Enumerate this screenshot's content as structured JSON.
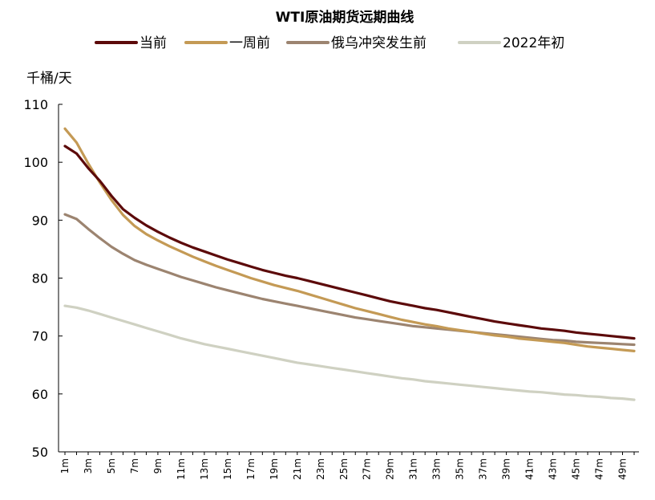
{
  "chart_data": {
    "type": "line",
    "title": "WTI原油期货远期曲线",
    "ylabel": "千桶/天",
    "xlabel": "",
    "ylim": [
      50,
      110
    ],
    "yticks": [
      50,
      60,
      70,
      80,
      90,
      100,
      110
    ],
    "x": [
      1,
      2,
      3,
      4,
      5,
      6,
      7,
      8,
      9,
      10,
      11,
      12,
      13,
      14,
      15,
      16,
      17,
      18,
      19,
      20,
      21,
      22,
      23,
      24,
      25,
      26,
      27,
      28,
      29,
      30,
      31,
      32,
      33,
      34,
      35,
      36,
      37,
      38,
      39,
      40,
      41,
      42,
      43,
      44,
      45,
      46,
      47,
      48,
      49,
      50
    ],
    "xtick_labels": [
      "1m",
      "3m",
      "5m",
      "7m",
      "9m",
      "11m",
      "13m",
      "15m",
      "17m",
      "19m",
      "21m",
      "23m",
      "25m",
      "27m",
      "29m",
      "31m",
      "33m",
      "35m",
      "37m",
      "39m",
      "41m",
      "43m",
      "45m",
      "47m",
      "49m"
    ],
    "xtick_positions": [
      1,
      3,
      5,
      7,
      9,
      11,
      13,
      15,
      17,
      19,
      21,
      23,
      25,
      27,
      29,
      31,
      33,
      35,
      37,
      39,
      41,
      43,
      45,
      47,
      49
    ],
    "legend_position": "top",
    "grid": false,
    "series": [
      {
        "name": "当前",
        "color": "#5c0a0a",
        "values": [
          102.8,
          101.5,
          99.0,
          96.8,
          94.2,
          91.9,
          90.4,
          89.1,
          88.0,
          87.0,
          86.1,
          85.3,
          84.6,
          83.9,
          83.2,
          82.6,
          82.0,
          81.4,
          80.9,
          80.4,
          80.0,
          79.5,
          79.0,
          78.5,
          78.0,
          77.5,
          77.0,
          76.5,
          76.0,
          75.6,
          75.2,
          74.8,
          74.5,
          74.1,
          73.7,
          73.3,
          72.9,
          72.5,
          72.2,
          71.9,
          71.6,
          71.3,
          71.1,
          70.9,
          70.6,
          70.4,
          70.2,
          70.0,
          69.8,
          69.6
        ]
      },
      {
        "name": "一周前",
        "color": "#c49a55",
        "values": [
          105.8,
          103.4,
          99.8,
          96.5,
          93.5,
          90.9,
          89.0,
          87.6,
          86.5,
          85.5,
          84.6,
          83.7,
          82.9,
          82.1,
          81.4,
          80.7,
          80.0,
          79.4,
          78.8,
          78.3,
          77.8,
          77.2,
          76.6,
          76.0,
          75.4,
          74.8,
          74.3,
          73.8,
          73.3,
          72.8,
          72.4,
          72.0,
          71.7,
          71.3,
          71.0,
          70.7,
          70.4,
          70.1,
          69.9,
          69.6,
          69.4,
          69.2,
          69.0,
          68.8,
          68.5,
          68.2,
          68.0,
          67.8,
          67.6,
          67.4
        ]
      },
      {
        "name": "俄乌冲突发生前",
        "color": "#9c8470",
        "values": [
          91.0,
          90.2,
          88.5,
          86.9,
          85.4,
          84.2,
          83.1,
          82.3,
          81.6,
          80.9,
          80.2,
          79.6,
          79.0,
          78.4,
          77.9,
          77.4,
          76.9,
          76.4,
          76.0,
          75.6,
          75.2,
          74.8,
          74.4,
          74.0,
          73.6,
          73.2,
          72.9,
          72.6,
          72.3,
          72.0,
          71.7,
          71.5,
          71.3,
          71.1,
          70.9,
          70.7,
          70.5,
          70.3,
          70.1,
          69.9,
          69.7,
          69.5,
          69.3,
          69.2,
          69.0,
          68.9,
          68.8,
          68.7,
          68.6,
          68.5
        ]
      },
      {
        "name": "2022年初",
        "color": "#cfd1c2",
        "values": [
          75.2,
          74.9,
          74.4,
          73.8,
          73.2,
          72.6,
          72.0,
          71.4,
          70.8,
          70.2,
          69.6,
          69.1,
          68.6,
          68.2,
          67.8,
          67.4,
          67.0,
          66.6,
          66.2,
          65.8,
          65.4,
          65.1,
          64.8,
          64.5,
          64.2,
          63.9,
          63.6,
          63.3,
          63.0,
          62.7,
          62.5,
          62.2,
          62.0,
          61.8,
          61.6,
          61.4,
          61.2,
          61.0,
          60.8,
          60.6,
          60.4,
          60.3,
          60.1,
          59.9,
          59.8,
          59.6,
          59.5,
          59.3,
          59.2,
          59.0
        ]
      }
    ]
  }
}
